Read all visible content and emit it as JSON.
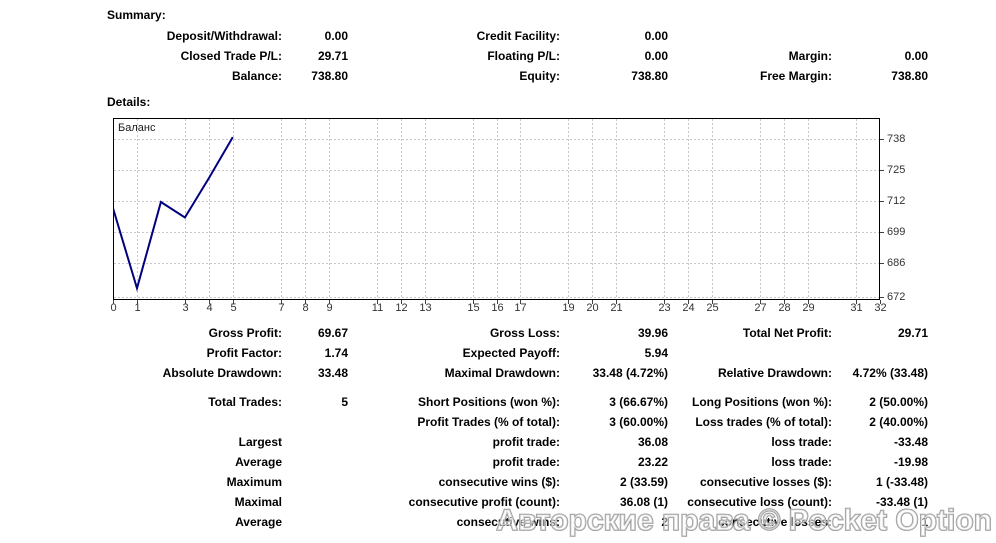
{
  "headings": {
    "summary": "Summary:",
    "details": "Details:"
  },
  "summary_table": {
    "rows": [
      {
        "cells": [
          "Deposit/Withdrawal:",
          "0.00",
          "Credit Facility:",
          "0.00",
          "",
          ""
        ]
      },
      {
        "cells": [
          "Closed Trade P/L:",
          "29.71",
          "Floating P/L:",
          "0.00",
          "Margin:",
          "0.00"
        ]
      },
      {
        "cells": [
          "Balance:",
          "738.80",
          "Equity:",
          "738.80",
          "Free Margin:",
          "738.80"
        ]
      }
    ]
  },
  "details_table": {
    "rows": [
      {
        "cells": [
          "Gross Profit:",
          "69.67",
          "Gross Loss:",
          "39.96",
          "Total Net Profit:",
          "29.71"
        ]
      },
      {
        "cells": [
          "Profit Factor:",
          "1.74",
          "Expected Payoff:",
          "5.94",
          "",
          ""
        ]
      },
      {
        "cells": [
          "Absolute Drawdown:",
          "33.48",
          "Maximal Drawdown:",
          "33.48 (4.72%)",
          "Relative Drawdown:",
          "4.72% (33.48)"
        ],
        "gap_after": true
      },
      {
        "cells": [
          "Total Trades:",
          "5",
          "Short Positions (won %):",
          "3 (66.67%)",
          "Long Positions (won %):",
          "2 (50.00%)"
        ]
      },
      {
        "cells": [
          "",
          "",
          "Profit Trades (% of total):",
          "3 (60.00%)",
          "Loss trades (% of total):",
          "2 (40.00%)"
        ]
      },
      {
        "cells": [
          "Largest",
          "",
          "profit trade:",
          "36.08",
          "loss trade:",
          "-33.48"
        ]
      },
      {
        "cells": [
          "Average",
          "",
          "profit trade:",
          "23.22",
          "loss trade:",
          "-19.98"
        ]
      },
      {
        "cells": [
          "Maximum",
          "",
          "consecutive wins ($):",
          "2 (33.59)",
          "consecutive losses ($):",
          "1 (-33.48)"
        ]
      },
      {
        "cells": [
          "Maximal",
          "",
          "consecutive profit (count):",
          "36.08 (1)",
          "consecutive loss (count):",
          "-33.48 (1)"
        ]
      },
      {
        "cells": [
          "Average",
          "",
          "consecutive wins:",
          "2",
          "consecutive losses:",
          "1"
        ]
      }
    ]
  },
  "chart_data": {
    "type": "line",
    "title": "Баланс",
    "series": [
      {
        "name": "Баланс",
        "x": [
          0,
          1,
          2,
          3,
          4,
          5
        ],
        "values": [
          709.09,
          675.61,
          711.69,
          705.21,
          721.67,
          738.8
        ]
      }
    ],
    "xlabel": "",
    "ylabel": "",
    "xlim": [
      0,
      32
    ],
    "ylim": [
      670.7,
      746.8
    ],
    "x_tick_labels": [
      "0",
      "1",
      "3",
      "4",
      "5",
      "7",
      "8",
      "9",
      "11",
      "12",
      "13",
      "15",
      "16",
      "17",
      "19",
      "20",
      "21",
      "23",
      "24",
      "25",
      "27",
      "28",
      "29",
      "31",
      "32"
    ],
    "y_tick_labels": [
      "738",
      "725",
      "712",
      "699",
      "686",
      "672"
    ],
    "grid": true,
    "legend_position": "top-left-inside",
    "line_color": "#000080",
    "grid_color": "#c8c8c8"
  },
  "watermark": {
    "text": "Авторские права © Pocket Option"
  },
  "colors": {
    "line": "#000080",
    "grid": "#c8c8c8",
    "axis_text": "#333333",
    "watermark_stroke": "#999999",
    "watermark_fill": "rgba(255,255,255,0.5)"
  }
}
